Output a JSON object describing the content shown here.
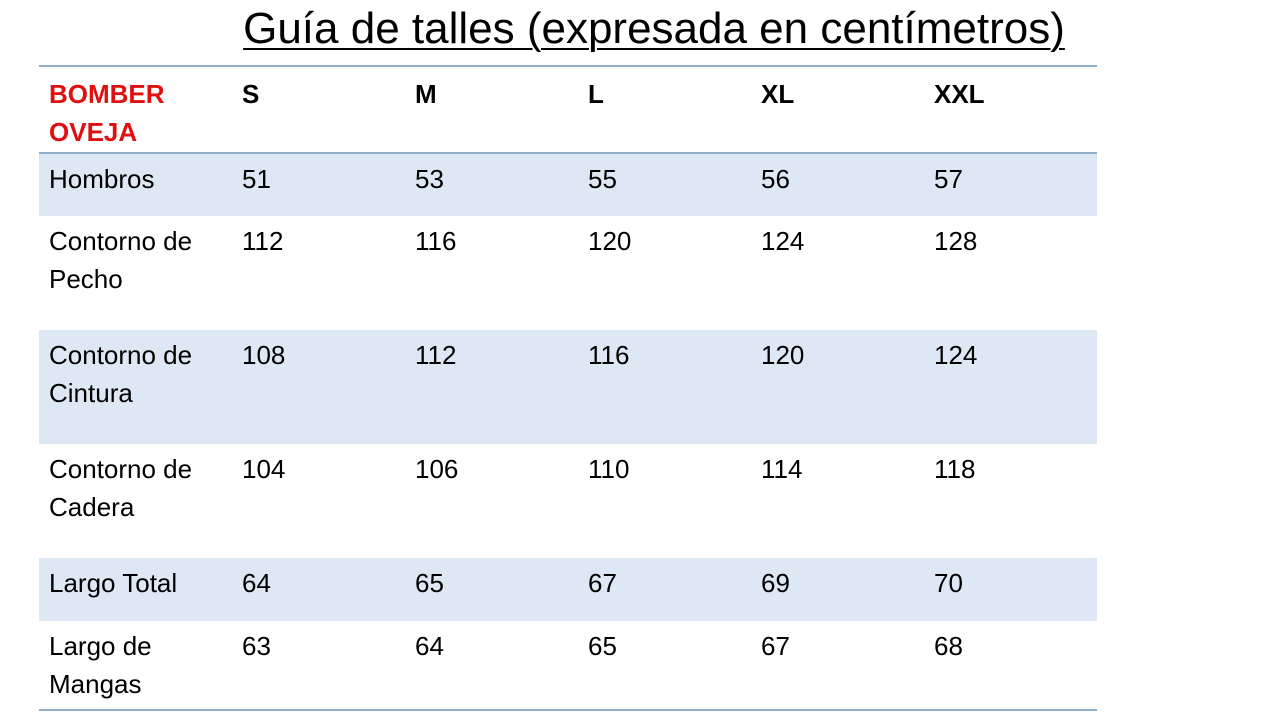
{
  "title": "Guía de talles (expresada en centímetros)",
  "table": {
    "header": {
      "brand_line1": "BOMBER",
      "brand_line2": "OVEJA",
      "sizes": [
        "S",
        "M",
        "L",
        "XL",
        "XXL"
      ]
    },
    "rows": [
      {
        "label_line1": "Hombros",
        "label_line2": "",
        "values": [
          "51",
          "53",
          "55",
          "56",
          "57"
        ]
      },
      {
        "label_line1": "Contorno de",
        "label_line2": "Pecho",
        "values": [
          "112",
          "116",
          "120",
          "124",
          "128"
        ]
      },
      {
        "label_line1": "Contorno de",
        "label_line2": "Cintura",
        "values": [
          "108",
          "112",
          "116",
          "120",
          "124"
        ]
      },
      {
        "label_line1": "Contorno de",
        "label_line2": "Cadera",
        "values": [
          "104",
          "106",
          "110",
          "114",
          "118"
        ]
      },
      {
        "label_line1": "Largo Total",
        "label_line2": "",
        "values": [
          "64",
          "65",
          "67",
          "69",
          "70"
        ]
      },
      {
        "label_line1": "Largo de",
        "label_line2": "Mangas",
        "values": [
          "63",
          "64",
          "65",
          "67",
          "68"
        ]
      }
    ]
  },
  "colors": {
    "brand_text": "#e01010",
    "row_shading": "#dde8f4",
    "rule": "#8fb0cc"
  }
}
